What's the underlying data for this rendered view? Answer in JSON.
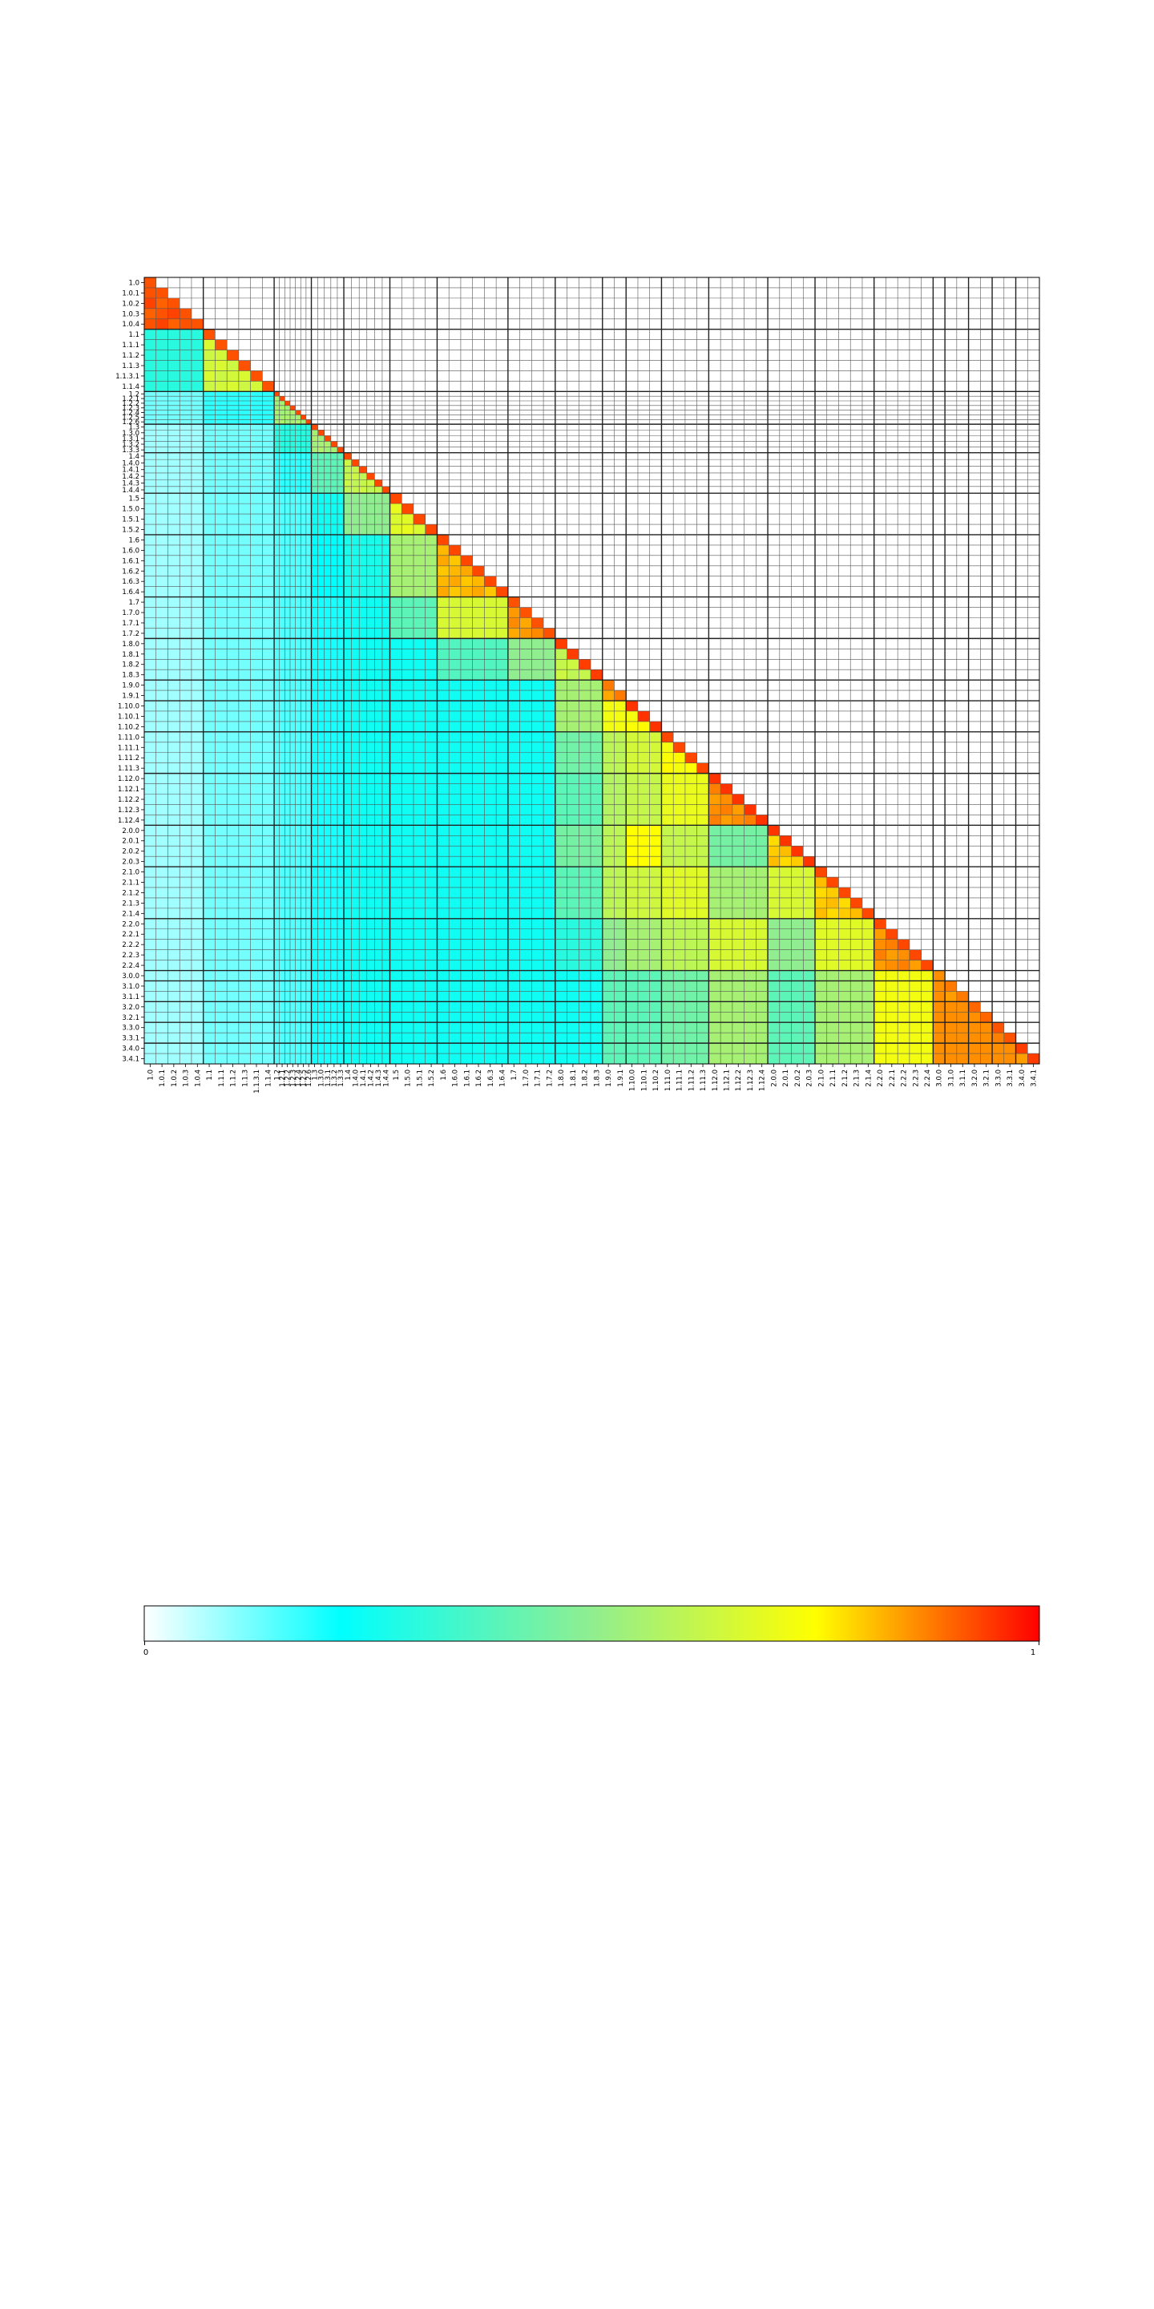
{
  "chart_data": {
    "type": "heatmap",
    "title": "",
    "xlabel": "",
    "ylabel": "",
    "layout": "lower-triangular",
    "grid": true,
    "legend": "colorbar-bottom",
    "colormap": [
      "#ffffff",
      "#00ffff",
      "#90ee90",
      "#ffff00",
      "#ff0000"
    ],
    "colorbar": {
      "min_label": "0",
      "max_label": "1",
      "range": [
        0,
        1
      ]
    },
    "labels": [
      "1.0",
      "1.0.1",
      "1.0.2",
      "1.0.3",
      "1.0.4",
      "1.1",
      "1.1.1",
      "1.1.2",
      "1.1.3",
      "1.1.3.1",
      "1.1.4",
      "1.2",
      "1.2.1",
      "1.2.2",
      "1.2.3",
      "1.2.4",
      "1.2.5",
      "1.2.6",
      "1.3",
      "1.3.0",
      "1.3.1",
      "1.3.2",
      "1.3.3",
      "1.4",
      "1.4.0",
      "1.4.1",
      "1.4.2",
      "1.4.3",
      "1.4.4",
      "1.5",
      "1.5.0",
      "1.5.1",
      "1.5.2",
      "1.6",
      "1.6.0",
      "1.6.1",
      "1.6.2",
      "1.6.3",
      "1.6.4",
      "1.7",
      "1.7.0",
      "1.7.1",
      "1.7.2",
      "1.8.0",
      "1.8.1",
      "1.8.2",
      "1.8.3",
      "1.9.0",
      "1.9.1",
      "1.10.0",
      "1.10.1",
      "1.10.2",
      "1.11.0",
      "1.11.1",
      "1.11.2",
      "1.11.3",
      "1.12.0",
      "1.12.1",
      "1.12.2",
      "1.12.3",
      "1.12.4",
      "2.0.0",
      "2.0.1",
      "2.0.2",
      "2.0.3",
      "2.1.0",
      "2.1.1",
      "2.1.2",
      "2.1.3",
      "2.1.4",
      "2.2.0",
      "2.2.1",
      "2.2.2",
      "2.2.3",
      "2.2.4",
      "3.0.0",
      "3.1.0",
      "3.1.1",
      "3.2.0",
      "3.2.1",
      "3.3.0",
      "3.3.1",
      "3.4.0",
      "3.4.1"
    ],
    "widths": [
      1,
      1,
      1,
      1,
      1,
      1,
      1,
      1,
      1,
      1,
      1,
      0.45,
      0.45,
      0.45,
      0.45,
      0.45,
      0.45,
      0.45,
      0.55,
      0.55,
      0.55,
      0.55,
      0.55,
      0.65,
      0.65,
      0.65,
      0.65,
      0.65,
      0.65,
      1,
      1,
      1,
      1,
      1,
      1,
      1,
      1,
      1,
      1,
      1,
      1,
      1,
      1,
      1,
      1,
      1,
      1,
      1,
      1,
      1,
      1,
      1,
      1,
      1,
      1,
      1,
      1,
      1,
      1,
      1,
      1,
      1,
      1,
      1,
      1,
      1,
      1,
      1,
      1,
      1,
      1,
      1,
      1,
      1,
      1,
      1,
      1,
      1,
      1,
      1,
      1,
      1,
      1,
      1
    ],
    "groups": [
      {
        "name": "1.0",
        "size": 5,
        "diag": 0.92
      },
      {
        "name": "1.1",
        "size": 6,
        "diag": 0.92
      },
      {
        "name": "1.2",
        "size": 7,
        "diag": 0.93
      },
      {
        "name": "1.3",
        "size": 5,
        "diag": 0.93
      },
      {
        "name": "1.4",
        "size": 6,
        "diag": 0.93
      },
      {
        "name": "1.5",
        "size": 4,
        "diag": 0.93
      },
      {
        "name": "1.6",
        "size": 6,
        "diag": 0.93
      },
      {
        "name": "1.7",
        "size": 4,
        "diag": 0.92
      },
      {
        "name": "1.8",
        "size": 4,
        "diag": 0.94
      },
      {
        "name": "1.9",
        "size": 2,
        "diag": 0.88
      },
      {
        "name": "1.10",
        "size": 3,
        "diag": 0.95
      },
      {
        "name": "1.11",
        "size": 4,
        "diag": 0.93
      },
      {
        "name": "1.12",
        "size": 5,
        "diag": 0.95
      },
      {
        "name": "2.0",
        "size": 4,
        "diag": 0.95
      },
      {
        "name": "2.1",
        "size": 5,
        "diag": 0.93
      },
      {
        "name": "2.2",
        "size": 5,
        "diag": 0.93
      },
      {
        "name": "3.0",
        "size": 1,
        "diag": 0.86
      },
      {
        "name": "3.1",
        "size": 2,
        "diag": 0.88
      },
      {
        "name": "3.2",
        "size": 2,
        "diag": 0.9
      },
      {
        "name": "3.3",
        "size": 2,
        "diag": 0.92
      },
      {
        "name": "3.4",
        "size": 2,
        "diag": 0.94
      }
    ],
    "group_similarity": {
      "columns": [
        "1.0",
        "1.1",
        "1.2",
        "1.3",
        "1.4",
        "1.5",
        "1.6",
        "1.7",
        "1.8",
        "1.9",
        "1.10",
        "1.11",
        "1.12",
        "2.0",
        "2.1",
        "2.2",
        "3.0",
        "3.1",
        "3.2",
        "3.3",
        "3.4"
      ],
      "rows": [
        [
          0.92
        ],
        [
          0.3,
          0.65
        ],
        [
          0.12,
          0.18,
          0.55
        ],
        [
          0.08,
          0.12,
          0.3,
          0.55
        ],
        [
          0.08,
          0.12,
          0.18,
          0.4,
          0.62
        ],
        [
          0.08,
          0.12,
          0.15,
          0.25,
          0.5,
          0.68
        ],
        [
          0.08,
          0.12,
          0.15,
          0.22,
          0.27,
          0.55,
          0.82
        ],
        [
          0.08,
          0.12,
          0.15,
          0.2,
          0.25,
          0.4,
          0.66,
          0.85
        ],
        [
          0.08,
          0.12,
          0.15,
          0.2,
          0.25,
          0.25,
          0.38,
          0.5,
          0.62
        ],
        [
          0.08,
          0.12,
          0.15,
          0.2,
          0.25,
          0.25,
          0.25,
          0.25,
          0.55,
          0.82
        ],
        [
          0.08,
          0.12,
          0.15,
          0.2,
          0.25,
          0.25,
          0.25,
          0.25,
          0.55,
          0.72,
          0.74
        ],
        [
          0.08,
          0.12,
          0.15,
          0.2,
          0.25,
          0.25,
          0.25,
          0.25,
          0.44,
          0.6,
          0.65,
          0.74
        ],
        [
          0.08,
          0.12,
          0.15,
          0.2,
          0.25,
          0.25,
          0.25,
          0.25,
          0.4,
          0.58,
          0.62,
          0.7,
          0.86
        ],
        [
          0.08,
          0.12,
          0.15,
          0.2,
          0.25,
          0.25,
          0.25,
          0.25,
          0.45,
          0.6,
          0.75,
          0.62,
          0.45,
          0.8
        ],
        [
          0.08,
          0.12,
          0.15,
          0.2,
          0.25,
          0.25,
          0.25,
          0.25,
          0.4,
          0.6,
          0.64,
          0.68,
          0.55,
          0.66,
          0.8
        ],
        [
          0.08,
          0.12,
          0.15,
          0.2,
          0.25,
          0.25,
          0.25,
          0.25,
          0.3,
          0.5,
          0.55,
          0.6,
          0.66,
          0.5,
          0.68,
          0.86
        ],
        [
          0.08,
          0.12,
          0.15,
          0.2,
          0.25,
          0.25,
          0.25,
          0.25,
          0.25,
          0.4,
          0.4,
          0.44,
          0.55,
          0.4,
          0.55,
          0.72,
          0.86
        ],
        [
          0.08,
          0.12,
          0.15,
          0.2,
          0.25,
          0.25,
          0.25,
          0.25,
          0.25,
          0.4,
          0.4,
          0.44,
          0.55,
          0.4,
          0.55,
          0.72,
          0.86,
          0.86
        ],
        [
          0.08,
          0.12,
          0.15,
          0.2,
          0.25,
          0.25,
          0.25,
          0.25,
          0.25,
          0.4,
          0.4,
          0.44,
          0.55,
          0.4,
          0.55,
          0.72,
          0.86,
          0.86,
          0.86
        ],
        [
          0.08,
          0.12,
          0.15,
          0.2,
          0.25,
          0.25,
          0.25,
          0.25,
          0.25,
          0.4,
          0.4,
          0.44,
          0.55,
          0.4,
          0.55,
          0.72,
          0.86,
          0.86,
          0.86,
          0.86
        ],
        [
          0.08,
          0.12,
          0.15,
          0.2,
          0.25,
          0.25,
          0.25,
          0.25,
          0.25,
          0.4,
          0.4,
          0.44,
          0.55,
          0.4,
          0.55,
          0.72,
          0.86,
          0.86,
          0.86,
          0.86,
          0.86
        ]
      ]
    }
  }
}
